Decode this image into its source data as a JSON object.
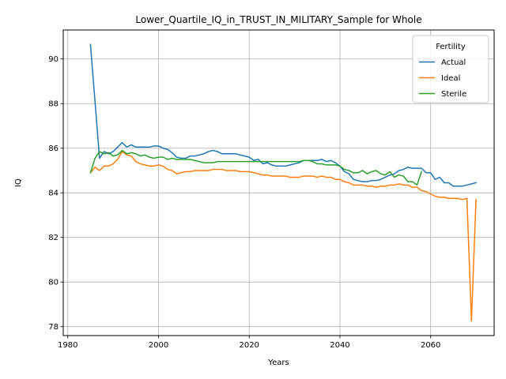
{
  "chart_data": {
    "type": "line",
    "title": "Lower_Quartile_IQ_in_TRUST_IN_MILITARY_Sample for Whole",
    "xlabel": "Years",
    "ylabel": "IQ",
    "xlim": [
      1979,
      2074
    ],
    "ylim": [
      77.6,
      91.3
    ],
    "xticks": [
      1980,
      2000,
      2020,
      2040,
      2060
    ],
    "yticks": [
      78,
      80,
      82,
      84,
      86,
      88,
      90
    ],
    "grid": true,
    "legend": {
      "title": "Fertility",
      "placement": "top-right"
    },
    "series": [
      {
        "name": "Actual",
        "color": "#1f77b4",
        "x": [
          1985,
          1986,
          1987,
          1988,
          1989,
          1990,
          1991,
          1992,
          1993,
          1994,
          1995,
          1996,
          1997,
          1998,
          1999,
          2000,
          2001,
          2002,
          2003,
          2004,
          2005,
          2006,
          2007,
          2008,
          2009,
          2010,
          2011,
          2012,
          2013,
          2014,
          2015,
          2016,
          2017,
          2018,
          2019,
          2020,
          2021,
          2022,
          2023,
          2024,
          2025,
          2026,
          2027,
          2028,
          2029,
          2030,
          2031,
          2032,
          2033,
          2034,
          2035,
          2036,
          2037,
          2038,
          2039,
          2040,
          2041,
          2042,
          2043,
          2044,
          2045,
          2046,
          2047,
          2048,
          2049,
          2050,
          2051,
          2052,
          2053,
          2054,
          2055,
          2056,
          2057,
          2058,
          2059,
          2060,
          2061,
          2062,
          2063,
          2064,
          2065,
          2066,
          2067,
          2068,
          2069,
          2070
        ],
        "y": [
          90.65,
          88.1,
          85.55,
          85.85,
          85.75,
          85.85,
          86.05,
          86.25,
          86.05,
          86.15,
          86.05,
          86.05,
          86.05,
          86.05,
          86.1,
          86.1,
          86.0,
          85.95,
          85.8,
          85.6,
          85.55,
          85.55,
          85.65,
          85.65,
          85.7,
          85.75,
          85.85,
          85.9,
          85.85,
          85.75,
          85.75,
          85.75,
          85.75,
          85.7,
          85.65,
          85.6,
          85.45,
          85.5,
          85.3,
          85.35,
          85.25,
          85.2,
          85.2,
          85.2,
          85.25,
          85.3,
          85.35,
          85.45,
          85.45,
          85.45,
          85.45,
          85.5,
          85.4,
          85.45,
          85.35,
          85.2,
          84.95,
          84.85,
          84.6,
          84.55,
          84.5,
          84.5,
          84.55,
          84.55,
          84.6,
          84.7,
          84.8,
          84.85,
          85.0,
          85.05,
          85.15,
          85.1,
          85.1,
          85.1,
          84.9,
          84.9,
          84.6,
          84.7,
          84.45,
          84.45,
          84.3,
          84.3,
          84.3,
          84.35,
          84.4,
          84.45
        ]
      },
      {
        "name": "Ideal",
        "color": "#ff7f0e",
        "x": [
          1985,
          1986,
          1987,
          1988,
          1989,
          1990,
          1991,
          1992,
          1993,
          1994,
          1995,
          1996,
          1997,
          1998,
          1999,
          2000,
          2001,
          2002,
          2003,
          2004,
          2005,
          2006,
          2007,
          2008,
          2009,
          2010,
          2011,
          2012,
          2013,
          2014,
          2015,
          2016,
          2017,
          2018,
          2019,
          2020,
          2021,
          2022,
          2023,
          2024,
          2025,
          2026,
          2027,
          2028,
          2029,
          2030,
          2031,
          2032,
          2033,
          2034,
          2035,
          2036,
          2037,
          2038,
          2039,
          2040,
          2041,
          2042,
          2043,
          2044,
          2045,
          2046,
          2047,
          2048,
          2049,
          2050,
          2051,
          2052,
          2053,
          2054,
          2055,
          2056,
          2057,
          2058,
          2059,
          2060,
          2061,
          2062,
          2063,
          2064,
          2065,
          2066,
          2067,
          2068,
          2069,
          2070
        ],
        "y": [
          84.9,
          85.15,
          85.0,
          85.2,
          85.2,
          85.3,
          85.5,
          85.85,
          85.7,
          85.65,
          85.4,
          85.3,
          85.25,
          85.2,
          85.2,
          85.25,
          85.2,
          85.05,
          85.0,
          84.85,
          84.9,
          84.95,
          84.95,
          85.0,
          85.0,
          85.0,
          85.0,
          85.05,
          85.05,
          85.05,
          85.0,
          85.0,
          85.0,
          84.95,
          84.95,
          84.95,
          84.9,
          84.85,
          84.8,
          84.8,
          84.75,
          84.75,
          84.75,
          84.75,
          84.7,
          84.7,
          84.7,
          84.75,
          84.75,
          84.75,
          84.7,
          84.75,
          84.7,
          84.7,
          84.6,
          84.6,
          84.5,
          84.45,
          84.35,
          84.35,
          84.35,
          84.3,
          84.3,
          84.25,
          84.3,
          84.3,
          84.35,
          84.35,
          84.4,
          84.35,
          84.35,
          84.25,
          84.25,
          84.1,
          84.05,
          83.95,
          83.85,
          83.8,
          83.8,
          83.75,
          83.75,
          83.75,
          83.7,
          83.75,
          78.25,
          83.7
        ]
      },
      {
        "name": "Sterile",
        "color": "#2ca02c",
        "x": [
          1985,
          1986,
          1987,
          1988,
          1989,
          1990,
          1991,
          1992,
          1993,
          1994,
          1995,
          1996,
          1997,
          1998,
          1999,
          2000,
          2001,
          2002,
          2003,
          2004,
          2005,
          2006,
          2007,
          2008,
          2009,
          2010,
          2011,
          2012,
          2013,
          2014,
          2015,
          2016,
          2017,
          2018,
          2019,
          2020,
          2021,
          2022,
          2023,
          2024,
          2025,
          2026,
          2027,
          2028,
          2029,
          2030,
          2031,
          2032,
          2033,
          2034,
          2035,
          2036,
          2037,
          2038,
          2039,
          2040,
          2041,
          2042,
          2043,
          2044,
          2045,
          2046,
          2047,
          2048,
          2049,
          2050,
          2051,
          2052,
          2053,
          2054,
          2055,
          2056,
          2057,
          2058
        ],
        "y": [
          84.9,
          85.55,
          85.85,
          85.75,
          85.8,
          85.65,
          85.7,
          85.9,
          85.75,
          85.8,
          85.75,
          85.65,
          85.7,
          85.6,
          85.55,
          85.6,
          85.6,
          85.5,
          85.55,
          85.5,
          85.5,
          85.5,
          85.5,
          85.45,
          85.4,
          85.35,
          85.35,
          85.35,
          85.4,
          85.4,
          85.4,
          85.4,
          85.4,
          85.4,
          85.4,
          85.4,
          85.4,
          85.4,
          85.4,
          85.4,
          85.4,
          85.4,
          85.4,
          85.4,
          85.4,
          85.4,
          85.4,
          85.45,
          85.45,
          85.4,
          85.3,
          85.3,
          85.25,
          85.25,
          85.25,
          85.2,
          85.05,
          85.0,
          84.9,
          84.9,
          85.0,
          84.85,
          84.95,
          85.0,
          84.85,
          84.8,
          84.95,
          84.7,
          84.8,
          84.75,
          84.5,
          84.5,
          84.35,
          84.95
        ]
      }
    ]
  }
}
